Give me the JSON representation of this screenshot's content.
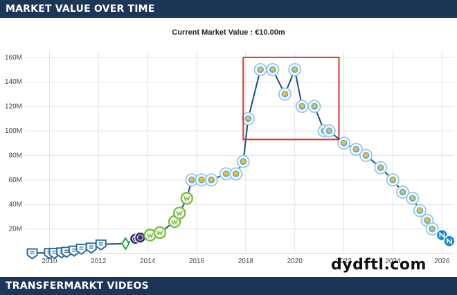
{
  "header": {
    "title": "MARKET VALUE OVER TIME"
  },
  "footer": {
    "title": "TRANSFERMARKT VIDEOS"
  },
  "watermark": "dydftl.com",
  "colors": {
    "header_bg": "#1d3557",
    "line": "#1b4f72",
    "highlight_box": "#d9342b",
    "grid": "#e3e3e3",
    "badge_generic": "#2d6aa0",
    "badge_werder": "#2f9e44",
    "badge_wolfsburg": "#7ac142",
    "badge_city": "#9ccbe8",
    "badge_napoli": "#1e88c8"
  },
  "chart_data": {
    "type": "line",
    "title": "Current Market Value : €10.00m",
    "xlabel": "",
    "ylabel": "",
    "xlim": [
      2009.0,
      2026.5
    ],
    "ylim": [
      0,
      165
    ],
    "y_ticks": [
      20,
      40,
      60,
      80,
      100,
      120,
      140,
      160
    ],
    "y_tick_labels": [
      "20M",
      "40M",
      "60M",
      "80M",
      "100M",
      "120M",
      "140M",
      "160M"
    ],
    "x_ticks": [
      2010,
      2012,
      2014,
      2016,
      2018,
      2020,
      2022,
      2024,
      2026
    ],
    "x_tick_labels": [
      "2010",
      "2012",
      "2014",
      "2016",
      "2018",
      "2020",
      "2022",
      "2024",
      "2026"
    ],
    "grid": true,
    "highlight_range": {
      "x": [
        2017.9,
        2021.8
      ],
      "y": [
        93,
        160
      ]
    },
    "series": [
      {
        "name": "Market value",
        "points": [
          {
            "x": 2009.3,
            "y": 0.3,
            "club": "generic"
          },
          {
            "x": 2010.0,
            "y": 0.5,
            "club": "generic"
          },
          {
            "x": 2010.2,
            "y": 0.6,
            "club": "generic"
          },
          {
            "x": 2010.5,
            "y": 1.0,
            "club": "generic"
          },
          {
            "x": 2010.7,
            "y": 1.5,
            "club": "generic"
          },
          {
            "x": 2011.0,
            "y": 2.5,
            "club": "generic"
          },
          {
            "x": 2011.3,
            "y": 4.0,
            "club": "generic"
          },
          {
            "x": 2011.7,
            "y": 5.0,
            "club": "generic"
          },
          {
            "x": 2012.1,
            "y": 7.5,
            "club": "generic"
          },
          {
            "x": 2013.1,
            "y": 8.0,
            "club": "werder"
          },
          {
            "x": 2013.5,
            "y": 12.0,
            "club": "other"
          },
          {
            "x": 2013.7,
            "y": 13.0,
            "club": "other"
          },
          {
            "x": 2014.1,
            "y": 15.0,
            "club": "wolfsburg"
          },
          {
            "x": 2014.5,
            "y": 17.0,
            "club": "wolfsburg"
          },
          {
            "x": 2015.1,
            "y": 26.0,
            "club": "wolfsburg"
          },
          {
            "x": 2015.3,
            "y": 33.0,
            "club": "wolfsburg"
          },
          {
            "x": 2015.6,
            "y": 45.0,
            "club": "wolfsburg"
          },
          {
            "x": 2015.8,
            "y": 60.0,
            "club": "city"
          },
          {
            "x": 2016.2,
            "y": 60.0,
            "club": "city"
          },
          {
            "x": 2016.6,
            "y": 60.0,
            "club": "city"
          },
          {
            "x": 2017.2,
            "y": 65.0,
            "club": "city"
          },
          {
            "x": 2017.6,
            "y": 65.0,
            "club": "city"
          },
          {
            "x": 2017.9,
            "y": 75.0,
            "club": "city"
          },
          {
            "x": 2018.1,
            "y": 110.0,
            "club": "city"
          },
          {
            "x": 2018.6,
            "y": 150.0,
            "club": "city"
          },
          {
            "x": 2019.1,
            "y": 150.0,
            "club": "city"
          },
          {
            "x": 2019.6,
            "y": 130.0,
            "club": "city"
          },
          {
            "x": 2020.0,
            "y": 150.0,
            "club": "city"
          },
          {
            "x": 2020.3,
            "y": 120.0,
            "club": "city"
          },
          {
            "x": 2020.8,
            "y": 120.0,
            "club": "city"
          },
          {
            "x": 2021.2,
            "y": 100.0,
            "club": "city"
          },
          {
            "x": 2021.4,
            "y": 100.0,
            "club": "city"
          },
          {
            "x": 2022.0,
            "y": 90.0,
            "club": "city"
          },
          {
            "x": 2022.5,
            "y": 85.0,
            "club": "city"
          },
          {
            "x": 2022.9,
            "y": 80.0,
            "club": "city"
          },
          {
            "x": 2023.5,
            "y": 70.0,
            "club": "city"
          },
          {
            "x": 2024.0,
            "y": 60.0,
            "club": "city"
          },
          {
            "x": 2024.4,
            "y": 50.0,
            "club": "city"
          },
          {
            "x": 2024.8,
            "y": 45.0,
            "club": "city"
          },
          {
            "x": 2025.1,
            "y": 35.0,
            "club": "city"
          },
          {
            "x": 2025.4,
            "y": 27.0,
            "club": "city"
          },
          {
            "x": 2025.6,
            "y": 20.0,
            "club": "city"
          },
          {
            "x": 2026.0,
            "y": 15.0,
            "club": "napoli"
          },
          {
            "x": 2026.3,
            "y": 10.0,
            "club": "napoli"
          }
        ]
      }
    ]
  }
}
